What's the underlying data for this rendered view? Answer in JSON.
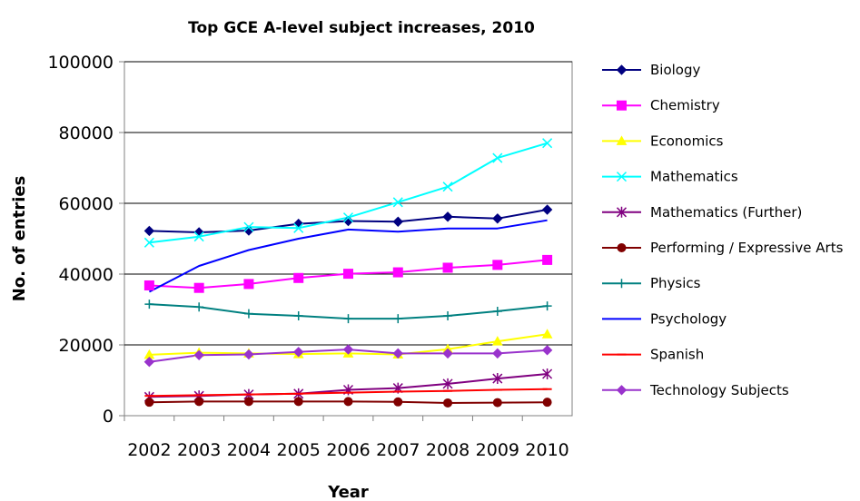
{
  "chart_data": {
    "type": "line",
    "title": "Top GCE A-level subject increases, 2010",
    "xlabel": "Year",
    "ylabel": "No. of entries",
    "x": [
      "2002",
      "2003",
      "2004",
      "2005",
      "2006",
      "2007",
      "2008",
      "2009",
      "2010"
    ],
    "ylim": [
      0,
      100000
    ],
    "yticks": [
      "0",
      "20000",
      "40000",
      "60000",
      "80000",
      "100000"
    ],
    "grid": true,
    "legend_position": "right",
    "series": [
      {
        "name": "Biology",
        "color": "#000080",
        "marker": "diamond",
        "values": [
          52200,
          51800,
          52300,
          54200,
          55000,
          54800,
          56200,
          55700,
          58200
        ]
      },
      {
        "name": "Chemistry",
        "color": "#ff00ff",
        "marker": "square",
        "values": [
          36800,
          36100,
          37200,
          38900,
          40100,
          40500,
          41800,
          42600,
          44000
        ]
      },
      {
        "name": "Economics",
        "color": "#ffff00",
        "marker": "triangle",
        "values": [
          17200,
          17800,
          17600,
          17400,
          17600,
          17300,
          18800,
          21000,
          23000
        ]
      },
      {
        "name": "Mathematics",
        "color": "#00ffff",
        "marker": "x",
        "values": [
          48900,
          50600,
          53300,
          53000,
          56000,
          60300,
          64700,
          72800,
          77000
        ]
      },
      {
        "name": "Mathematics (Further)",
        "color": "#800080",
        "marker": "star",
        "values": [
          5300,
          5600,
          6000,
          6200,
          7300,
          7800,
          9000,
          10500,
          11800
        ]
      },
      {
        "name": "Performing / Expressive Arts",
        "color": "#800000",
        "marker": "circle",
        "values": [
          3800,
          4000,
          4000,
          4000,
          4000,
          3900,
          3600,
          3700,
          3800
        ]
      },
      {
        "name": "Physics",
        "color": "#008080",
        "marker": "plus",
        "values": [
          31500,
          30700,
          28800,
          28200,
          27400,
          27400,
          28200,
          29500,
          31000
        ]
      },
      {
        "name": "Psychology",
        "color": "#0000ff",
        "marker": "none",
        "values": [
          35000,
          42300,
          46800,
          50000,
          52600,
          52000,
          52900,
          52900,
          55200
        ]
      },
      {
        "name": "Spanish",
        "color": "#ff0000",
        "marker": "dash",
        "values": [
          5600,
          5800,
          6000,
          6200,
          6500,
          6800,
          7000,
          7300,
          7500
        ]
      },
      {
        "name": "Technology Subjects",
        "color": "#9933cc",
        "marker": "diamond",
        "values": [
          15200,
          17100,
          17300,
          18000,
          18700,
          17600,
          17600,
          17600,
          18500
        ]
      }
    ]
  }
}
